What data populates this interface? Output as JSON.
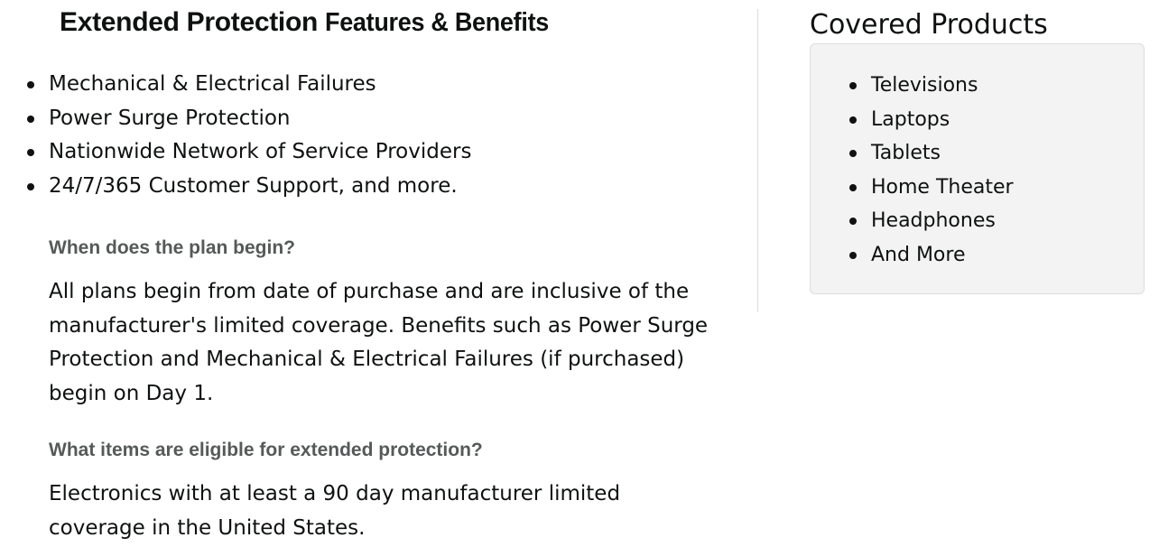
{
  "title": {
    "part1": "Extended Protection",
    "part2": "Features & Benefits"
  },
  "features": [
    "Mechanical & Electrical Failures",
    "Power Surge Protection",
    "Nationwide Network of Service Providers",
    "24/7/365 Customer Support, and more."
  ],
  "faq": [
    {
      "question": "When does the plan begin?",
      "answer": "All plans begin from date of purchase and are inclusive of the manufacturer's limited coverage. Benefits such as Power Surge Protection and Mechanical & Electrical Failures (if purchased) begin on Day 1."
    },
    {
      "question": "What items are eligible for extended protection?",
      "answer": "Electronics with at least a 90 day manufacturer limited coverage in the United States."
    }
  ],
  "covered": {
    "heading": "Covered Products",
    "items": [
      "Televisions",
      "Laptops",
      "Tablets",
      "Home Theater",
      "Headphones",
      "And More"
    ]
  }
}
